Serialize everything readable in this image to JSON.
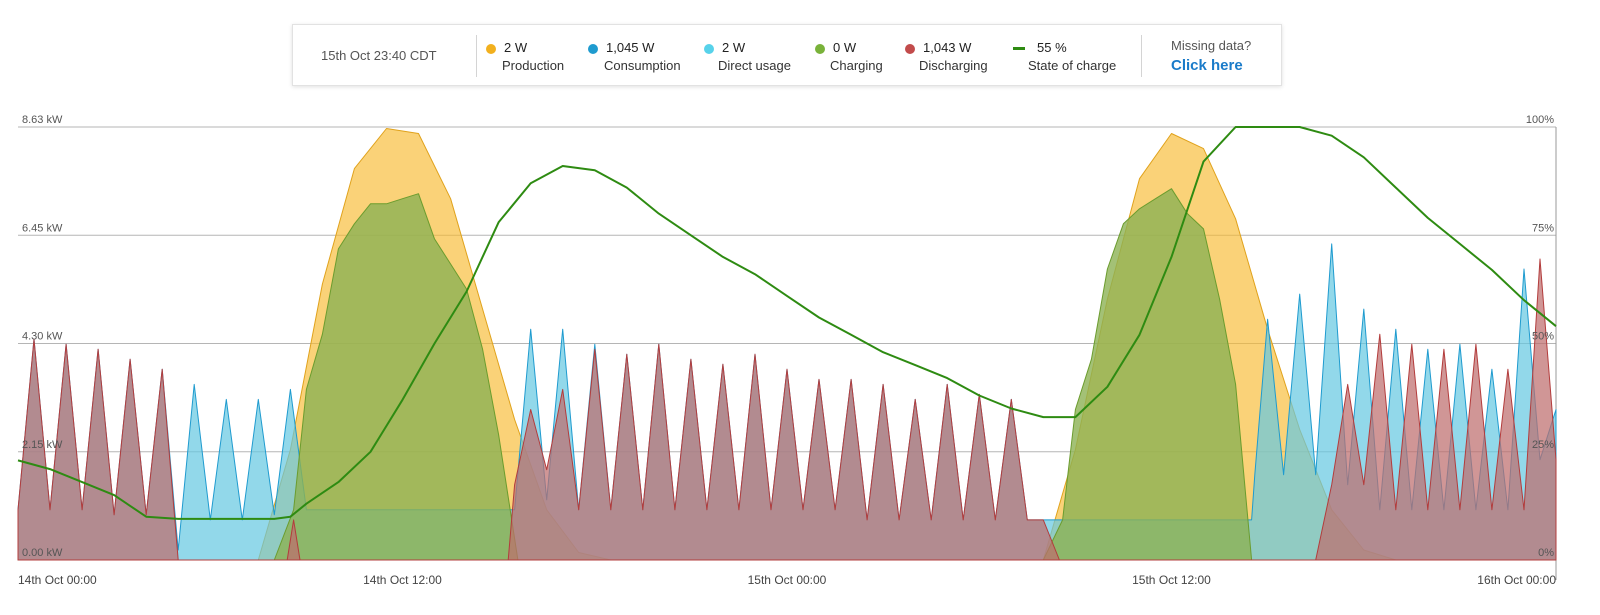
{
  "legend": {
    "timestamp": "15th Oct 23:40 CDT",
    "items": [
      {
        "value": "2 W",
        "label": "Production",
        "color": "#f2b01e",
        "marker": "dot"
      },
      {
        "value": "1,045 W",
        "label": "Consumption",
        "color": "#1f9bcf",
        "marker": "dot"
      },
      {
        "value": "2 W",
        "label": "Direct usage",
        "color": "#57d2ea",
        "marker": "dot"
      },
      {
        "value": "0 W",
        "label": "Charging",
        "color": "#79b23a",
        "marker": "dot"
      },
      {
        "value": "1,043 W",
        "label": "Discharging",
        "color": "#c24b4b",
        "marker": "dot"
      },
      {
        "value": "55 %",
        "label": "State of charge",
        "color": "#2e8b12",
        "marker": "dash"
      }
    ],
    "missing_text": "Missing data?",
    "missing_link": "Click here"
  },
  "chart_data": {
    "type": "area",
    "x_ticks": [
      "14th Oct 00:00",
      "14th Oct 12:00",
      "15th Oct 00:00",
      "15th Oct 12:00",
      "16th Oct 00:00"
    ],
    "x_range_hours": [
      0,
      48
    ],
    "y_left_ticks": [
      "0.00 kW",
      "2.15 kW",
      "4.30 kW",
      "6.45 kW",
      "8.63 kW"
    ],
    "y_left_range_kw": [
      0,
      8.63
    ],
    "y_right_ticks": [
      "0%",
      "25%",
      "50%",
      "75%",
      "100%"
    ],
    "y_right_range_pct": [
      0,
      100
    ],
    "grid": true,
    "series": [
      {
        "name": "Production",
        "unit": "kW",
        "color": "#f2b01e",
        "points": [
          [
            0,
            0
          ],
          [
            7.5,
            0
          ],
          [
            8.5,
            2.2
          ],
          [
            9.5,
            5.5
          ],
          [
            10.5,
            7.8
          ],
          [
            11.5,
            8.6
          ],
          [
            12.5,
            8.5
          ],
          [
            13.5,
            7.2
          ],
          [
            14.5,
            5.0
          ],
          [
            15.5,
            2.8
          ],
          [
            16.5,
            1.0
          ],
          [
            17.5,
            0.15
          ],
          [
            18.5,
            0
          ],
          [
            32,
            0
          ],
          [
            33,
            2.2
          ],
          [
            34,
            5.2
          ],
          [
            35,
            7.6
          ],
          [
            36,
            8.5
          ],
          [
            37,
            8.2
          ],
          [
            38,
            6.8
          ],
          [
            39,
            4.6
          ],
          [
            40,
            2.6
          ],
          [
            41,
            1.0
          ],
          [
            42,
            0.2
          ],
          [
            43,
            0
          ],
          [
            48,
            0
          ]
        ]
      },
      {
        "name": "Charging",
        "unit": "kW",
        "color": "#79b23a",
        "points": [
          [
            0,
            0
          ],
          [
            8,
            0
          ],
          [
            8.6,
            1.0
          ],
          [
            9.0,
            3.4
          ],
          [
            9.5,
            4.5
          ],
          [
            10.0,
            6.2
          ],
          [
            10.5,
            6.7
          ],
          [
            11.0,
            7.1
          ],
          [
            11.5,
            7.1
          ],
          [
            12.0,
            7.2
          ],
          [
            12.5,
            7.3
          ],
          [
            13.0,
            6.4
          ],
          [
            13.5,
            5.9
          ],
          [
            14.0,
            5.4
          ],
          [
            14.5,
            4.2
          ],
          [
            15.0,
            2.5
          ],
          [
            15.6,
            0
          ],
          [
            32,
            0
          ],
          [
            32.6,
            0.8
          ],
          [
            33,
            3.0
          ],
          [
            33.5,
            4.0
          ],
          [
            34,
            5.8
          ],
          [
            34.5,
            6.7
          ],
          [
            35,
            7.0
          ],
          [
            35.5,
            7.2
          ],
          [
            36,
            7.4
          ],
          [
            36.5,
            6.9
          ],
          [
            37,
            6.6
          ],
          [
            37.5,
            5.2
          ],
          [
            38,
            3.5
          ],
          [
            38.5,
            0
          ],
          [
            48,
            0
          ]
        ]
      },
      {
        "name": "State of charge",
        "unit": "%",
        "color": "#2e8b12",
        "points": [
          [
            0,
            23
          ],
          [
            1,
            21
          ],
          [
            2,
            18
          ],
          [
            3,
            15
          ],
          [
            4,
            10
          ],
          [
            5,
            9.5
          ],
          [
            6,
            9.5
          ],
          [
            7,
            9.5
          ],
          [
            8,
            9.5
          ],
          [
            8.5,
            10
          ],
          [
            9,
            13
          ],
          [
            10,
            18
          ],
          [
            11,
            25
          ],
          [
            12,
            37
          ],
          [
            13,
            50
          ],
          [
            14,
            62
          ],
          [
            15,
            78
          ],
          [
            16,
            87
          ],
          [
            17,
            91
          ],
          [
            18,
            90
          ],
          [
            19,
            86
          ],
          [
            20,
            80
          ],
          [
            21,
            75
          ],
          [
            22,
            70
          ],
          [
            23,
            66
          ],
          [
            24,
            61
          ],
          [
            25,
            56
          ],
          [
            26,
            52
          ],
          [
            27,
            48
          ],
          [
            28,
            45
          ],
          [
            29,
            42
          ],
          [
            30,
            38
          ],
          [
            31,
            35
          ],
          [
            32,
            33
          ],
          [
            33,
            33
          ],
          [
            34,
            40
          ],
          [
            35,
            52
          ],
          [
            36,
            70
          ],
          [
            37,
            92
          ],
          [
            38,
            100
          ],
          [
            39,
            100
          ],
          [
            40,
            100
          ],
          [
            41,
            98
          ],
          [
            42,
            93
          ],
          [
            43,
            86
          ],
          [
            44,
            79
          ],
          [
            45,
            73
          ],
          [
            46,
            67
          ],
          [
            47,
            60
          ],
          [
            48,
            54
          ]
        ]
      },
      {
        "name": "Consumption",
        "unit": "kW",
        "color": "#1f9bcf",
        "points": [
          [
            0,
            1.0
          ],
          [
            0.5,
            4.4
          ],
          [
            1.0,
            1.0
          ],
          [
            1.5,
            4.3
          ],
          [
            2.0,
            1.0
          ],
          [
            2.5,
            4.2
          ],
          [
            3.0,
            0.9
          ],
          [
            3.5,
            4.0
          ],
          [
            4.0,
            0.9
          ],
          [
            4.5,
            3.8
          ],
          [
            5.0,
            0.2
          ],
          [
            5.5,
            3.5
          ],
          [
            6.0,
            0.8
          ],
          [
            6.5,
            3.2
          ],
          [
            7.0,
            0.8
          ],
          [
            7.5,
            3.2
          ],
          [
            8.0,
            0.9
          ],
          [
            8.5,
            3.4
          ],
          [
            9.0,
            1.0
          ],
          [
            15.5,
            1.0
          ],
          [
            16,
            4.6
          ],
          [
            16.5,
            1.2
          ],
          [
            17,
            4.6
          ],
          [
            17.5,
            1.0
          ],
          [
            18,
            4.3
          ],
          [
            18.5,
            1.0
          ],
          [
            19,
            4.1
          ],
          [
            19.5,
            1.0
          ],
          [
            20,
            4.3
          ],
          [
            20.5,
            1.0
          ],
          [
            21,
            4.0
          ],
          [
            21.5,
            1.0
          ],
          [
            22,
            3.9
          ],
          [
            22.5,
            1.0
          ],
          [
            23,
            4.1
          ],
          [
            23.5,
            1.0
          ],
          [
            24,
            3.8
          ],
          [
            24.5,
            1.0
          ],
          [
            25,
            3.6
          ],
          [
            25.5,
            1.0
          ],
          [
            26,
            3.6
          ],
          [
            26.5,
            0.8
          ],
          [
            27,
            3.5
          ],
          [
            27.5,
            0.8
          ],
          [
            28,
            3.2
          ],
          [
            28.5,
            0.8
          ],
          [
            29,
            3.5
          ],
          [
            29.5,
            0.8
          ],
          [
            30,
            3.3
          ],
          [
            30.5,
            0.8
          ],
          [
            31,
            3.2
          ],
          [
            31.5,
            0.8
          ],
          [
            32,
            0.8
          ],
          [
            38.5,
            0.8
          ],
          [
            38.6,
            1.7
          ],
          [
            39,
            4.8
          ],
          [
            39.5,
            1.7
          ],
          [
            40,
            5.3
          ],
          [
            40.5,
            1.7
          ],
          [
            41,
            6.3
          ],
          [
            41.5,
            1.5
          ],
          [
            42,
            5.0
          ],
          [
            42.5,
            1.0
          ],
          [
            43,
            4.6
          ],
          [
            43.5,
            1.0
          ],
          [
            44,
            4.2
          ],
          [
            44.5,
            1.0
          ],
          [
            45,
            4.3
          ],
          [
            45.5,
            1.0
          ],
          [
            46,
            3.8
          ],
          [
            46.5,
            1.0
          ],
          [
            47,
            5.8
          ],
          [
            47.5,
            2.0
          ],
          [
            48,
            3.0
          ]
        ]
      },
      {
        "name": "Discharging",
        "unit": "kW",
        "color": "#c24b4b",
        "points": [
          [
            0,
            1.0
          ],
          [
            0.5,
            4.4
          ],
          [
            1.0,
            1.0
          ],
          [
            1.5,
            4.3
          ],
          [
            2.0,
            1.0
          ],
          [
            2.5,
            4.2
          ],
          [
            3.0,
            0.9
          ],
          [
            3.5,
            4.0
          ],
          [
            4.0,
            0.9
          ],
          [
            4.5,
            3.8
          ],
          [
            5.0,
            0
          ],
          [
            8.4,
            0
          ],
          [
            8.6,
            0.8
          ],
          [
            8.8,
            0
          ],
          [
            15.3,
            0
          ],
          [
            15.5,
            1.5
          ],
          [
            16,
            3.0
          ],
          [
            16.5,
            1.8
          ],
          [
            17,
            3.4
          ],
          [
            17.5,
            1.0
          ],
          [
            18,
            4.2
          ],
          [
            18.5,
            1.0
          ],
          [
            19,
            4.1
          ],
          [
            19.5,
            1.0
          ],
          [
            20,
            4.3
          ],
          [
            20.5,
            1.0
          ],
          [
            21,
            4.0
          ],
          [
            21.5,
            1.0
          ],
          [
            22,
            3.9
          ],
          [
            22.5,
            1.0
          ],
          [
            23,
            4.1
          ],
          [
            23.5,
            1.0
          ],
          [
            24,
            3.8
          ],
          [
            24.5,
            1.0
          ],
          [
            25,
            3.6
          ],
          [
            25.5,
            1.0
          ],
          [
            26,
            3.6
          ],
          [
            26.5,
            0.8
          ],
          [
            27,
            3.5
          ],
          [
            27.5,
            0.8
          ],
          [
            28,
            3.2
          ],
          [
            28.5,
            0.8
          ],
          [
            29,
            3.5
          ],
          [
            29.5,
            0.8
          ],
          [
            30,
            3.3
          ],
          [
            30.5,
            0.8
          ],
          [
            31,
            3.2
          ],
          [
            31.5,
            0.8
          ],
          [
            32,
            0.8
          ],
          [
            32.5,
            0
          ],
          [
            40.5,
            0
          ],
          [
            41,
            1.5
          ],
          [
            41.5,
            3.5
          ],
          [
            42,
            1.5
          ],
          [
            42.5,
            4.5
          ],
          [
            43,
            1.0
          ],
          [
            43.5,
            4.3
          ],
          [
            44,
            1.0
          ],
          [
            44.5,
            4.2
          ],
          [
            45,
            1.0
          ],
          [
            45.5,
            4.3
          ],
          [
            46,
            1.0
          ],
          [
            46.5,
            3.8
          ],
          [
            47,
            1.0
          ],
          [
            47.5,
            6.0
          ],
          [
            48,
            2.0
          ]
        ]
      }
    ]
  }
}
